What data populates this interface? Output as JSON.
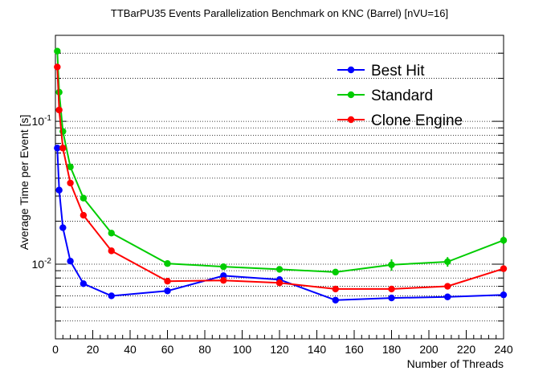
{
  "chart_data": {
    "type": "line",
    "title": "TTBarPU35 Events Parallelization Benchmark on KNC (Barrel) [nVU=16]",
    "xlabel": "Number of Threads",
    "ylabel": "Average Time per Event [s]",
    "xlim": [
      0,
      240
    ],
    "ylim": [
      0.003,
      0.4
    ],
    "yscale": "log",
    "grid": "horizontal dotted",
    "legend_position": "top-right",
    "x_ticks": [
      0,
      20,
      40,
      60,
      80,
      100,
      120,
      140,
      160,
      180,
      200,
      220,
      240
    ],
    "x_tick_labels": [
      "0",
      "20",
      "40",
      "60",
      "80",
      "100",
      "120",
      "140",
      "160",
      "180",
      "200",
      "220",
      "240"
    ],
    "y_major_ticks": [
      0.01,
      0.1
    ],
    "y_major_tick_labels": [
      {
        "base": "10",
        "exp": "-2"
      },
      {
        "base": "10",
        "exp": "-1"
      }
    ],
    "series": [
      {
        "name": "Best Hit",
        "color": "#0000ff",
        "x": [
          1,
          2,
          4,
          8,
          15,
          30,
          60,
          90,
          120,
          150,
          180,
          210,
          240
        ],
        "y": [
          0.065,
          0.033,
          0.018,
          0.0105,
          0.0073,
          0.006,
          0.0065,
          0.0083,
          0.0078,
          0.0056,
          0.0058,
          0.0059,
          0.0061
        ],
        "yerr": [
          0,
          0,
          0,
          0,
          0,
          0,
          0,
          0.0004,
          0,
          0,
          0,
          0,
          0
        ]
      },
      {
        "name": "Standard",
        "color": "#00cc00",
        "x": [
          1,
          2,
          4,
          8,
          15,
          30,
          60,
          90,
          120,
          150,
          180,
          210,
          240
        ],
        "y": [
          0.31,
          0.16,
          0.085,
          0.048,
          0.029,
          0.0165,
          0.0101,
          0.0096,
          0.0092,
          0.0088,
          0.0099,
          0.0104,
          0.0147
        ],
        "yerr": [
          0,
          0,
          0,
          0,
          0,
          0,
          0,
          0.0004,
          0,
          0,
          0.0009,
          0.0008,
          0.0009
        ]
      },
      {
        "name": "Clone Engine",
        "color": "#ff0000",
        "x": [
          1,
          2,
          4,
          8,
          15,
          30,
          60,
          90,
          120,
          150,
          180,
          210,
          240
        ],
        "y": [
          0.24,
          0.12,
          0.065,
          0.037,
          0.022,
          0.0124,
          0.0076,
          0.0077,
          0.0074,
          0.0067,
          0.0067,
          0.007,
          0.0093
        ],
        "yerr": [
          0,
          0,
          0,
          0,
          0,
          0,
          0,
          0,
          0,
          0,
          0,
          0,
          0
        ]
      }
    ]
  }
}
